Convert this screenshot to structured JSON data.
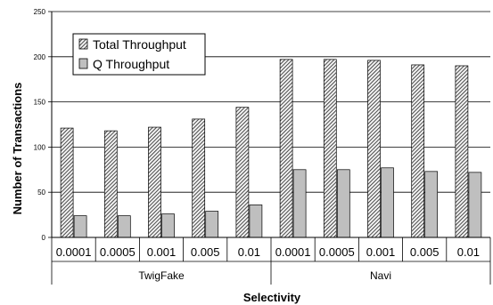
{
  "chart_data": {
    "type": "bar",
    "title": "",
    "xlabel": "Selectivity",
    "ylabel": "Number of Transactions",
    "ylim": [
      0,
      250
    ],
    "yticks": [
      0,
      50,
      100,
      150,
      200,
      250
    ],
    "grid": true,
    "legend_position": "top-left",
    "groups": [
      {
        "name": "TwigFake",
        "categories": [
          "0.0001",
          "0.0005",
          "0.001",
          "0.005",
          "0.01"
        ]
      },
      {
        "name": "Navi",
        "categories": [
          "0.0001",
          "0.0005",
          "0.001",
          "0.005",
          "0.01"
        ]
      }
    ],
    "categories": [
      "0.0001",
      "0.0005",
      "0.001",
      "0.005",
      "0.01",
      "0.0001",
      "0.0005",
      "0.001",
      "0.005",
      "0.01"
    ],
    "series": [
      {
        "name": "Total Throughput",
        "pattern": "hatched",
        "color": "#3a3a3a",
        "values": [
          121,
          118,
          122,
          131,
          144,
          197,
          197,
          196,
          191,
          190
        ]
      },
      {
        "name": "Q Throughput",
        "pattern": "solid",
        "color": "#bfbfbf",
        "values": [
          24,
          24,
          26,
          29,
          36,
          75,
          75,
          77,
          73,
          72
        ]
      }
    ]
  }
}
